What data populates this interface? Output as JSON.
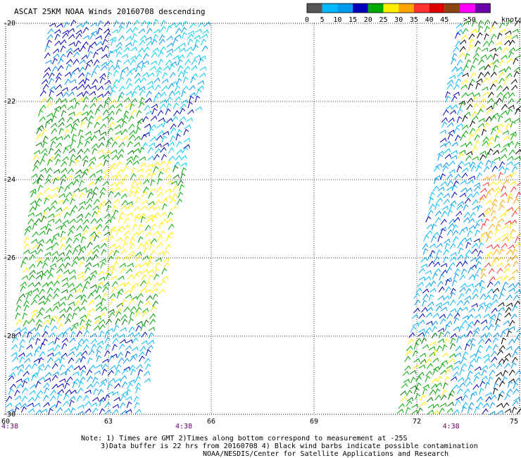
{
  "title": "ASCAT 25KM NOAA Winds 20160708 descending",
  "legend": {
    "unit": "knots",
    "ticks": [
      "0",
      "5",
      "10",
      "15",
      "20",
      "25",
      "30",
      "35",
      "40",
      "45",
      ">50"
    ],
    "colors": [
      "#555555",
      "#00b8ff",
      "#0099ee",
      "#0000bb",
      "#00aa00",
      "#ffee00",
      "#ffa500",
      "#ff3030",
      "#dd0000",
      "#8b4513",
      "#ff00ff",
      "#6a00aa"
    ]
  },
  "axes": {
    "lon_labels": [
      "60",
      "63",
      "66",
      "69",
      "72",
      "75"
    ],
    "lat_labels": [
      "-20",
      "-22",
      "-24",
      "-26",
      "-28",
      "-30"
    ],
    "lon_range": [
      60,
      75
    ],
    "lat_range": [
      -30,
      -20
    ]
  },
  "times": [
    {
      "label": "4:38",
      "lon": 60
    },
    {
      "label": "4:38",
      "lon": 65.2
    },
    {
      "label": "4:38",
      "lon": 73
    }
  ],
  "notes": [
    "Note: 1) Times are GMT 2)Times along bottom correspond to measurement at -25S",
    "3)Data buffer is 22 hrs from 20160708 4) Black wind barbs indicate possible contamination",
    "NOAA/NESDIS/Center for Satellite Applications and Research"
  ]
}
